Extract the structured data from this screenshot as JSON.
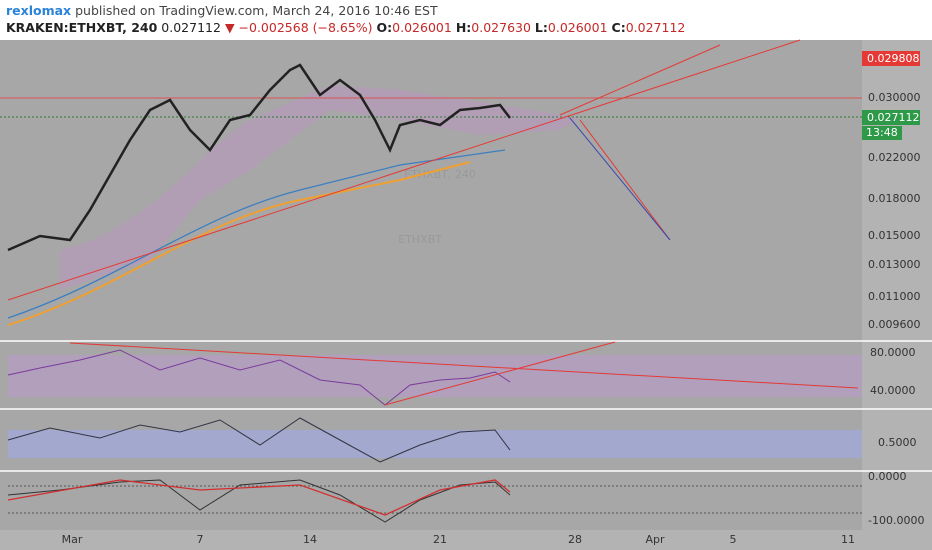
{
  "header": {
    "author": "rexlomax",
    "published": "published on TradingView.com, March 24, 2016 10:46 EST",
    "symbol": "KRAKEN:ETHXBT, 240",
    "last": "0.027112",
    "change": "▼ −0.002568 (−8.65%)",
    "ohlc": [
      {
        "label": "O:",
        "value": "0.026001"
      },
      {
        "label": "H:",
        "value": "0.027630"
      },
      {
        "label": "L:",
        "value": "0.026001"
      },
      {
        "label": "C:",
        "value": "0.027112"
      }
    ]
  },
  "watermark": {
    "big": "ETHXBT, 240",
    "small": "ETHXBT"
  },
  "price_axis": [
    "0.030000",
    "0.022000",
    "0.018000",
    "0.015000",
    "0.013000",
    "0.011000",
    "0.009600"
  ],
  "badges": {
    "high": "0.029808",
    "last": "0.027112",
    "countdown": "13:48"
  },
  "rsi_axis": [
    "80.0000",
    "40.0000"
  ],
  "osc_axis": [
    "0.5000"
  ],
  "cci_axis": [
    "0.0000",
    "-100.0000"
  ],
  "dates": [
    "Mar",
    "7",
    "14",
    "21",
    "28",
    "Apr",
    "5",
    "11"
  ]
}
